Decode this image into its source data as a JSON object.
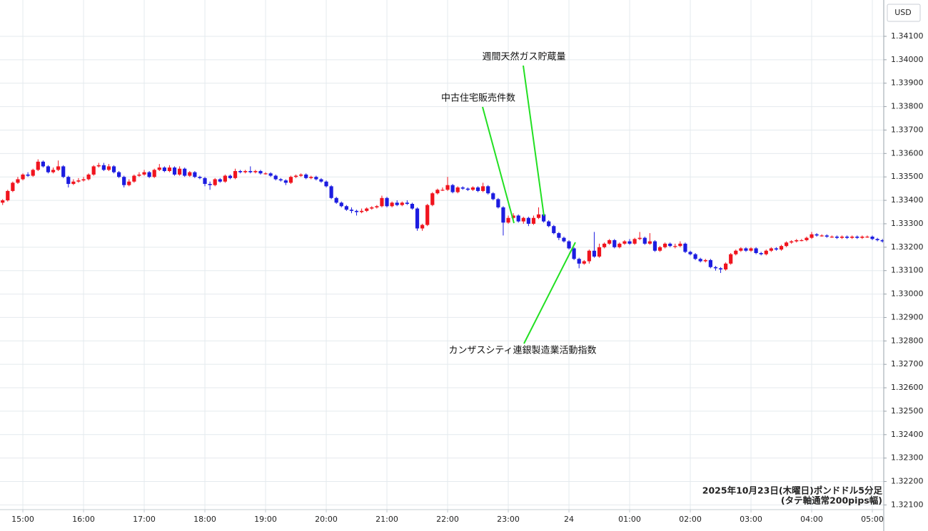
{
  "chart_data": {
    "type": "candlestick",
    "x": [
      "14:40",
      "14:45",
      "14:50",
      "14:55",
      "15:00",
      "15:05",
      "15:10",
      "15:15",
      "15:20",
      "15:25",
      "15:30",
      "15:35",
      "15:40",
      "15:45",
      "15:50",
      "15:55",
      "16:00",
      "16:05",
      "16:10",
      "16:15",
      "16:20",
      "16:25",
      "16:30",
      "16:35",
      "16:40",
      "16:45",
      "16:50",
      "16:55",
      "17:00",
      "17:05",
      "17:10",
      "17:15",
      "17:20",
      "17:25",
      "17:30",
      "17:35",
      "17:40",
      "17:45",
      "17:50",
      "17:55",
      "18:00",
      "18:05",
      "18:10",
      "18:15",
      "18:20",
      "18:25",
      "18:30",
      "18:35",
      "18:40",
      "18:45",
      "18:50",
      "18:55",
      "19:00",
      "19:05",
      "19:10",
      "19:15",
      "19:20",
      "19:25",
      "19:30",
      "19:35",
      "19:40",
      "19:45",
      "19:50",
      "19:55",
      "20:00",
      "20:05",
      "20:10",
      "20:15",
      "20:20",
      "20:25",
      "20:30",
      "20:35",
      "20:40",
      "20:45",
      "20:50",
      "20:55",
      "21:00",
      "21:05",
      "21:10",
      "21:15",
      "21:20",
      "21:25",
      "21:30",
      "21:35",
      "21:40",
      "21:45",
      "21:50",
      "21:55",
      "22:00",
      "22:05",
      "22:10",
      "22:15",
      "22:20",
      "22:25",
      "22:30",
      "22:35",
      "22:40",
      "22:45",
      "22:50",
      "22:55",
      "23:00",
      "23:05",
      "23:10",
      "23:15",
      "23:20",
      "23:25",
      "23:30",
      "23:35",
      "23:40",
      "23:45",
      "23:50",
      "23:55",
      "00:00",
      "00:05",
      "00:10",
      "00:15",
      "00:20",
      "00:25",
      "00:30",
      "00:35",
      "00:40",
      "00:45",
      "00:50",
      "00:55",
      "01:00",
      "01:05",
      "01:10",
      "01:15",
      "01:20",
      "01:25",
      "01:30",
      "01:35",
      "01:40",
      "01:45",
      "01:50",
      "01:55",
      "02:00",
      "02:05",
      "02:10",
      "02:15",
      "02:20",
      "02:25",
      "02:30",
      "02:35",
      "02:40",
      "02:45",
      "02:50",
      "02:55",
      "03:00",
      "03:05",
      "03:10",
      "03:15",
      "03:20",
      "03:25",
      "03:30",
      "03:35",
      "03:40",
      "03:45",
      "03:50",
      "03:55",
      "04:00",
      "04:05",
      "04:10",
      "04:15",
      "04:20",
      "04:25",
      "04:30",
      "04:35",
      "04:40",
      "04:45",
      "04:50",
      "04:55",
      "05:00",
      "05:05",
      "05:10"
    ],
    "open": [
      1.3339,
      1.334,
      1.3344,
      1.33475,
      1.3349,
      1.3351,
      1.33505,
      1.3353,
      1.33565,
      1.33545,
      1.3352,
      1.3353,
      1.33545,
      1.335,
      1.3347,
      1.3348,
      1.33485,
      1.3349,
      1.3351,
      1.33545,
      1.3355,
      1.3353,
      1.33545,
      1.3352,
      1.335,
      1.33465,
      1.3348,
      1.33505,
      1.3351,
      1.3352,
      1.335,
      1.3353,
      1.3354,
      1.33525,
      1.3354,
      1.3351,
      1.33535,
      1.33505,
      1.3352,
      1.335,
      1.33495,
      1.3347,
      1.33465,
      1.3349,
      1.3348,
      1.33505,
      1.33495,
      1.33525,
      1.3352,
      1.33525,
      1.3352,
      1.33525,
      1.33515,
      1.33515,
      1.33505,
      1.3349,
      1.33485,
      1.33475,
      1.335,
      1.33505,
      1.3351,
      1.33495,
      1.335,
      1.3349,
      1.3348,
      1.3346,
      1.3341,
      1.3339,
      1.33375,
      1.3336,
      1.33355,
      1.3335,
      1.33355,
      1.33365,
      1.3337,
      1.33375,
      1.3341,
      1.33375,
      1.3339,
      1.3338,
      1.3339,
      1.33385,
      1.33365,
      1.3328,
      1.33295,
      1.3338,
      1.3343,
      1.33445,
      1.33445,
      1.33465,
      1.33435,
      1.33455,
      1.3345,
      1.33445,
      1.33455,
      1.3344,
      1.3346,
      1.3343,
      1.33405,
      1.3337,
      1.33305,
      1.33325,
      1.33335,
      1.3331,
      1.33325,
      1.333,
      1.33325,
      1.3334,
      1.3331,
      1.3329,
      1.3326,
      1.3324,
      1.33225,
      1.33195,
      1.3315,
      1.3313,
      1.3314,
      1.33185,
      1.3316,
      1.332,
      1.33215,
      1.3323,
      1.332,
      1.33215,
      1.33225,
      1.33215,
      1.33235,
      1.3324,
      1.33215,
      1.33225,
      1.33185,
      1.332,
      1.33215,
      1.33205,
      1.33205,
      1.33215,
      1.3318,
      1.3317,
      1.3315,
      1.3314,
      1.33145,
      1.33115,
      1.3311,
      1.33105,
      1.3313,
      1.3317,
      1.33185,
      1.33195,
      1.33185,
      1.33195,
      1.33175,
      1.3317,
      1.33185,
      1.33195,
      1.3319,
      1.33205,
      1.3322,
      1.33225,
      1.3323,
      1.3323,
      1.3324,
      1.33255,
      1.3325,
      1.3325,
      1.33245,
      1.33245,
      1.3324,
      1.33245,
      1.3324,
      1.33245,
      1.3324,
      1.33245,
      1.33245,
      1.33235,
      1.3323
    ],
    "high": [
      1.33405,
      1.33445,
      1.3348,
      1.335,
      1.33515,
      1.3352,
      1.33535,
      1.33575,
      1.3357,
      1.3355,
      1.3354,
      1.3357,
      1.3355,
      1.33505,
      1.3349,
      1.33495,
      1.335,
      1.33515,
      1.3355,
      1.3356,
      1.3356,
      1.33555,
      1.3355,
      1.33525,
      1.33505,
      1.3349,
      1.3351,
      1.3352,
      1.3353,
      1.33525,
      1.33535,
      1.33555,
      1.33545,
      1.3355,
      1.33545,
      1.33545,
      1.3354,
      1.33525,
      1.33525,
      1.33505,
      1.335,
      1.3348,
      1.33495,
      1.33495,
      1.3351,
      1.3351,
      1.33535,
      1.3353,
      1.3353,
      1.33545,
      1.3353,
      1.3353,
      1.3352,
      1.3352,
      1.3351,
      1.33495,
      1.3349,
      1.33505,
      1.3351,
      1.33515,
      1.33515,
      1.33505,
      1.33505,
      1.33495,
      1.33485,
      1.33465,
      1.33415,
      1.33395,
      1.3338,
      1.3337,
      1.3336,
      1.33365,
      1.3337,
      1.33375,
      1.3338,
      1.3342,
      1.33415,
      1.33395,
      1.334,
      1.33395,
      1.334,
      1.3339,
      1.3337,
      1.333,
      1.33385,
      1.33435,
      1.3345,
      1.33455,
      1.335,
      1.3347,
      1.3346,
      1.3346,
      1.33455,
      1.3346,
      1.3346,
      1.33475,
      1.33465,
      1.33435,
      1.3341,
      1.33375,
      1.33335,
      1.33345,
      1.3334,
      1.3333,
      1.3333,
      1.33335,
      1.3337,
      1.33345,
      1.33315,
      1.33295,
      1.33265,
      1.33245,
      1.3323,
      1.332,
      1.33155,
      1.33145,
      1.3319,
      1.33265,
      1.33215,
      1.3322,
      1.33235,
      1.33235,
      1.3322,
      1.3323,
      1.33235,
      1.3324,
      1.33265,
      1.33245,
      1.3326,
      1.3323,
      1.33205,
      1.3322,
      1.3322,
      1.33215,
      1.33225,
      1.3322,
      1.33185,
      1.33175,
      1.33155,
      1.3315,
      1.3315,
      1.3312,
      1.33115,
      1.33135,
      1.33175,
      1.3319,
      1.332,
      1.332,
      1.332,
      1.332,
      1.3318,
      1.3319,
      1.332,
      1.332,
      1.3321,
      1.33225,
      1.3323,
      1.33235,
      1.33235,
      1.33245,
      1.33265,
      1.3326,
      1.33255,
      1.33255,
      1.3325,
      1.3325,
      1.3325,
      1.3325,
      1.3325,
      1.3325,
      1.3325,
      1.3325,
      1.3325,
      1.3324,
      1.33235
    ],
    "low": [
      1.3338,
      1.33395,
      1.33435,
      1.3347,
      1.33485,
      1.335,
      1.335,
      1.33525,
      1.3354,
      1.33515,
      1.33515,
      1.33525,
      1.33495,
      1.33455,
      1.33465,
      1.33475,
      1.3348,
      1.33485,
      1.33505,
      1.3354,
      1.33525,
      1.33525,
      1.33515,
      1.33495,
      1.33455,
      1.3346,
      1.33475,
      1.335,
      1.33505,
      1.33495,
      1.33495,
      1.33525,
      1.3352,
      1.3352,
      1.33505,
      1.33505,
      1.335,
      1.335,
      1.33495,
      1.3349,
      1.3346,
      1.33445,
      1.3346,
      1.33475,
      1.33475,
      1.3349,
      1.3349,
      1.33515,
      1.33515,
      1.33515,
      1.33515,
      1.3351,
      1.3351,
      1.335,
      1.33485,
      1.3348,
      1.33465,
      1.3347,
      1.33495,
      1.335,
      1.3349,
      1.3349,
      1.33485,
      1.33475,
      1.33455,
      1.33405,
      1.33385,
      1.3337,
      1.33355,
      1.33345,
      1.33335,
      1.33345,
      1.3335,
      1.3336,
      1.33365,
      1.3337,
      1.3337,
      1.3337,
      1.33375,
      1.33375,
      1.3338,
      1.3336,
      1.3327,
      1.3327,
      1.3329,
      1.33375,
      1.33425,
      1.3344,
      1.3344,
      1.3343,
      1.3343,
      1.33445,
      1.3344,
      1.3344,
      1.33435,
      1.33435,
      1.33425,
      1.334,
      1.33365,
      1.3325,
      1.333,
      1.3332,
      1.33305,
      1.333,
      1.3329,
      1.33295,
      1.3332,
      1.33305,
      1.33285,
      1.33255,
      1.3323,
      1.3322,
      1.3319,
      1.33145,
      1.3311,
      1.33125,
      1.3313,
      1.33155,
      1.33155,
      1.33195,
      1.3321,
      1.33195,
      1.33195,
      1.3321,
      1.3321,
      1.3321,
      1.3323,
      1.3321,
      1.3321,
      1.3318,
      1.3318,
      1.33195,
      1.332,
      1.33195,
      1.332,
      1.33175,
      1.33165,
      1.33145,
      1.33135,
      1.33135,
      1.3311,
      1.331,
      1.3309,
      1.331,
      1.33125,
      1.33165,
      1.3318,
      1.3318,
      1.3318,
      1.3317,
      1.33165,
      1.33165,
      1.3318,
      1.33185,
      1.33185,
      1.332,
      1.33215,
      1.3322,
      1.33225,
      1.33225,
      1.33235,
      1.33245,
      1.33245,
      1.3324,
      1.3324,
      1.33235,
      1.33235,
      1.33235,
      1.33235,
      1.33235,
      1.33235,
      1.3324,
      1.3323,
      1.33225,
      1.3322
    ],
    "close": [
      1.334,
      1.3344,
      1.33475,
      1.3349,
      1.3351,
      1.33505,
      1.3353,
      1.33565,
      1.33545,
      1.3352,
      1.3353,
      1.33545,
      1.335,
      1.3347,
      1.3348,
      1.33485,
      1.3349,
      1.3351,
      1.33545,
      1.3355,
      1.3353,
      1.33545,
      1.3352,
      1.335,
      1.33465,
      1.3348,
      1.33505,
      1.3351,
      1.3352,
      1.335,
      1.3353,
      1.3354,
      1.33525,
      1.3354,
      1.3351,
      1.33535,
      1.33505,
      1.3352,
      1.335,
      1.33495,
      1.3347,
      1.33465,
      1.3349,
      1.3348,
      1.33505,
      1.33495,
      1.33525,
      1.3352,
      1.33525,
      1.3352,
      1.33525,
      1.33515,
      1.33515,
      1.33505,
      1.3349,
      1.33485,
      1.33475,
      1.335,
      1.33505,
      1.3351,
      1.33495,
      1.335,
      1.3349,
      1.3348,
      1.3346,
      1.3341,
      1.3339,
      1.33375,
      1.3336,
      1.33355,
      1.3335,
      1.33355,
      1.33365,
      1.3337,
      1.33375,
      1.3341,
      1.33375,
      1.3339,
      1.3338,
      1.3339,
      1.33385,
      1.33365,
      1.3328,
      1.33295,
      1.3338,
      1.3343,
      1.33445,
      1.33445,
      1.33465,
      1.33435,
      1.33455,
      1.3345,
      1.33445,
      1.33455,
      1.3344,
      1.3346,
      1.3343,
      1.33405,
      1.3337,
      1.33305,
      1.33325,
      1.33335,
      1.3331,
      1.33325,
      1.333,
      1.33325,
      1.3334,
      1.3331,
      1.3329,
      1.3326,
      1.3324,
      1.33225,
      1.33195,
      1.3315,
      1.3313,
      1.3314,
      1.33185,
      1.3316,
      1.332,
      1.33215,
      1.3323,
      1.332,
      1.33215,
      1.33225,
      1.33215,
      1.33235,
      1.3324,
      1.33215,
      1.33225,
      1.33185,
      1.332,
      1.33215,
      1.33205,
      1.33205,
      1.33215,
      1.3318,
      1.3317,
      1.3315,
      1.3314,
      1.33145,
      1.33115,
      1.3311,
      1.33105,
      1.3313,
      1.3317,
      1.33185,
      1.33195,
      1.33185,
      1.33195,
      1.33175,
      1.3317,
      1.33185,
      1.33195,
      1.3319,
      1.33205,
      1.3322,
      1.33225,
      1.3323,
      1.3323,
      1.3324,
      1.33255,
      1.3325,
      1.3325,
      1.33245,
      1.33245,
      1.3324,
      1.33245,
      1.3324,
      1.33245,
      1.3324,
      1.33245,
      1.33245,
      1.33235,
      1.3323,
      1.33225
    ],
    "up_color": "#f0141e",
    "down_color": "#1c1ce0",
    "ylim": [
      1.3208,
      1.34255
    ],
    "yticks": [
      {
        "value": 1.321,
        "label": "1.32100"
      },
      {
        "value": 1.322,
        "label": "1.32200"
      },
      {
        "value": 1.323,
        "label": "1.32300"
      },
      {
        "value": 1.324,
        "label": "1.32400"
      },
      {
        "value": 1.325,
        "label": "1.32500"
      },
      {
        "value": 1.326,
        "label": "1.32600"
      },
      {
        "value": 1.327,
        "label": "1.32700"
      },
      {
        "value": 1.328,
        "label": "1.32800"
      },
      {
        "value": 1.329,
        "label": "1.32900"
      },
      {
        "value": 1.33,
        "label": "1.33000"
      },
      {
        "value": 1.331,
        "label": "1.33100"
      },
      {
        "value": 1.332,
        "label": "1.33200"
      },
      {
        "value": 1.333,
        "label": "1.33300"
      },
      {
        "value": 1.334,
        "label": "1.33400"
      },
      {
        "value": 1.335,
        "label": "1.33500"
      },
      {
        "value": 1.336,
        "label": "1.33600"
      },
      {
        "value": 1.337,
        "label": "1.33700"
      },
      {
        "value": 1.338,
        "label": "1.33800"
      },
      {
        "value": 1.339,
        "label": "1.33900"
      },
      {
        "value": 1.34,
        "label": "1.34000"
      },
      {
        "value": 1.341,
        "label": "1.34100"
      }
    ],
    "xticks": [
      "15:00",
      "16:00",
      "17:00",
      "18:00",
      "19:00",
      "20:00",
      "21:00",
      "22:00",
      "23:00",
      {
        "value": "00:00",
        "label": "24"
      },
      "01:00",
      "02:00",
      "03:00",
      "04:00",
      "05:00"
    ],
    "grid": true,
    "y_axis_label": "USD",
    "annotations": [
      "週間天然ガス貯蔵量",
      "中古住宅販売件数",
      "カンザスシティ連銀製造業活動指数"
    ],
    "note": [
      "2025年10月23日(木曜日)ポンドドル5分足",
      "(タテ軸通常200pips幅)"
    ]
  }
}
